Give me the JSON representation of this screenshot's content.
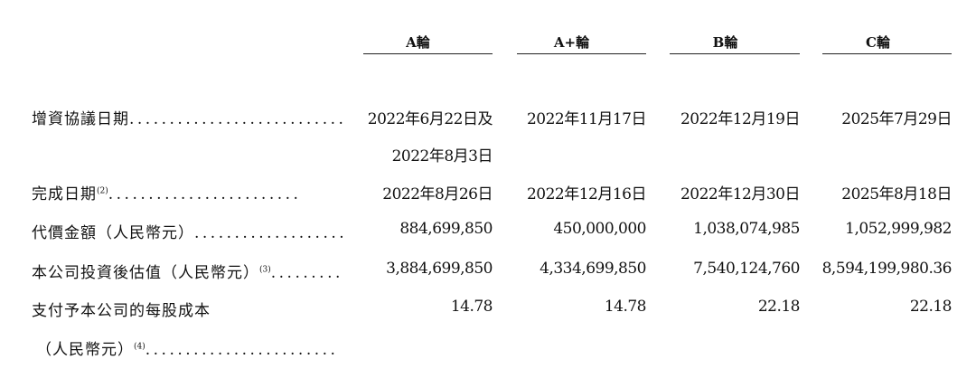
{
  "columns": [
    "A輪",
    "A+輪",
    "B輪",
    "C輪"
  ],
  "rows": [
    {
      "label": "增資協議日期",
      "leader": "...........................",
      "values": [
        "2022年6月22日及",
        "2022年11月17日",
        "2022年12月19日",
        "2025年7月29日"
      ],
      "continuation": "2022年8月3日"
    },
    {
      "label": "完成日期",
      "note": "(2)",
      "leader": "........................",
      "values": [
        "2022年8月26日",
        "2022年12月16日",
        "2022年12月30日",
        "2025年8月18日"
      ]
    },
    {
      "label": "代價金額（人民幣元）",
      "leader": "...................",
      "values": [
        "884,699,850",
        "450,000,000",
        "1,038,074,985",
        "1,052,999,982"
      ]
    },
    {
      "label": "本公司投資後估值（人民幣元）",
      "note": "(3)",
      "leader": ".............",
      "values": [
        "3,884,699,850",
        "4,334,699,850",
        "7,540,124,760",
        "8,594,199,980.36"
      ]
    },
    {
      "label": "支付予本公司的每股成本",
      "values": [
        "14.78",
        "14.78",
        "22.18",
        "22.18"
      ],
      "label_cont": "（人民幣元）",
      "note_cont": "(4)",
      "leader_cont": "........................"
    }
  ]
}
